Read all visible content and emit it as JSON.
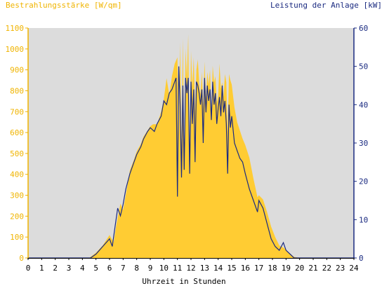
{
  "chart_data": {
    "type": "area",
    "left_axis_title": "Bestrahlungsstärke [W/qm]",
    "right_axis_title": "Leistung der Anlage [kW]",
    "xlabel": "Uhrzeit in Stunden",
    "x_ticks": [
      "0",
      "1",
      "2",
      "3",
      "4",
      "5",
      "6",
      "7",
      "8",
      "9",
      "10",
      "11",
      "12",
      "13",
      "14",
      "15",
      "16",
      "17",
      "18",
      "19",
      "20",
      "21",
      "22",
      "23",
      "24"
    ],
    "y_left_ticks": [
      "0",
      "100",
      "200",
      "300",
      "400",
      "500",
      "600",
      "700",
      "800",
      "900",
      "1000",
      "1100"
    ],
    "y_right_ticks": [
      "0",
      "10",
      "20",
      "30",
      "40",
      "50",
      "60"
    ],
    "x_range": [
      0,
      24
    ],
    "y_left_range": [
      0,
      1100
    ],
    "y_right_range": [
      0,
      60
    ],
    "grid": false,
    "colors": {
      "irradiance_fill": "#ffcc33",
      "power_line": "#1a2a80",
      "plot_bg": "#dcdcdc",
      "left_axis_text": "#f0b400",
      "right_axis_text": "#1a2a80",
      "bottom_text": "#000000"
    },
    "series": [
      {
        "axis": "left",
        "x": [
          0,
          4.5,
          5.0,
          5.5,
          6.0,
          6.3,
          6.5,
          6.8,
          7.0,
          7.3,
          7.5,
          7.8,
          8.0,
          8.3,
          8.5,
          8.8,
          9.0,
          9.2,
          9.5,
          9.8,
          10.0,
          10.2,
          10.4,
          10.6,
          10.8,
          11.0,
          11.1,
          11.2,
          11.3,
          11.4,
          11.5,
          11.6,
          11.7,
          11.8,
          11.9,
          12.0,
          12.1,
          12.2,
          12.3,
          12.4,
          12.5,
          12.6,
          12.7,
          12.8,
          12.9,
          13.0,
          13.1,
          13.2,
          13.3,
          13.4,
          13.5,
          13.6,
          13.7,
          13.8,
          13.9,
          14.0,
          14.1,
          14.2,
          14.3,
          14.4,
          14.5,
          14.6,
          14.7,
          14.8,
          14.9,
          15.0,
          15.2,
          15.4,
          15.6,
          15.8,
          16.0,
          16.3,
          16.6,
          16.9,
          17.0,
          17.3,
          17.6,
          17.9,
          18.2,
          18.5,
          18.8,
          19.0,
          19.3,
          19.6,
          20.0,
          20.3,
          24
        ],
        "values": [
          0,
          0,
          25,
          60,
          110,
          75,
          160,
          260,
          230,
          340,
          420,
          470,
          510,
          545,
          580,
          610,
          630,
          640,
          640,
          700,
          760,
          860,
          780,
          870,
          930,
          960,
          590,
          1030,
          540,
          1050,
          480,
          1000,
          860,
          1070,
          420,
          990,
          820,
          960,
          700,
          900,
          950,
          840,
          780,
          890,
          720,
          940,
          760,
          890,
          830,
          900,
          680,
          920,
          840,
          870,
          740,
          780,
          930,
          810,
          840,
          770,
          880,
          840,
          600,
          880,
          850,
          830,
          720,
          650,
          610,
          570,
          540,
          480,
          380,
          290,
          300,
          280,
          220,
          150,
          100,
          60,
          50,
          40,
          20,
          5,
          0,
          0,
          0
        ]
      },
      {
        "axis": "right",
        "x": [
          0,
          4.6,
          5.0,
          5.5,
          6.0,
          6.2,
          6.4,
          6.6,
          6.8,
          7.0,
          7.2,
          7.5,
          7.8,
          8.0,
          8.3,
          8.5,
          8.8,
          9.0,
          9.3,
          9.5,
          9.8,
          10.0,
          10.2,
          10.4,
          10.6,
          10.8,
          10.9,
          11.0,
          11.1,
          11.2,
          11.3,
          11.4,
          11.5,
          11.6,
          11.7,
          11.8,
          11.9,
          12.0,
          12.1,
          12.2,
          12.3,
          12.4,
          12.5,
          12.6,
          12.7,
          12.8,
          12.9,
          13.0,
          13.1,
          13.2,
          13.3,
          13.4,
          13.5,
          13.6,
          13.7,
          13.8,
          13.9,
          14.0,
          14.1,
          14.2,
          14.3,
          14.4,
          14.5,
          14.6,
          14.7,
          14.8,
          14.9,
          15.0,
          15.2,
          15.4,
          15.6,
          15.8,
          16.0,
          16.3,
          16.6,
          16.9,
          17.0,
          17.3,
          17.6,
          17.9,
          18.2,
          18.5,
          18.8,
          19.0,
          19.3,
          19.6,
          19.9,
          20.1,
          24
        ],
        "values": [
          0,
          0,
          1,
          3,
          5,
          3,
          8,
          13,
          11,
          14,
          18,
          22,
          25,
          27,
          29,
          31,
          33,
          34,
          33,
          35,
          37,
          41,
          40,
          43,
          44,
          46,
          47,
          16,
          50,
          40,
          21,
          45,
          23,
          47,
          43,
          47,
          22,
          46,
          35,
          44,
          25,
          46,
          45,
          43,
          40,
          44,
          30,
          47,
          38,
          45,
          41,
          44,
          36,
          46,
          40,
          43,
          35,
          39,
          42,
          37,
          45,
          38,
          41,
          35,
          22,
          40,
          34,
          37,
          30,
          28,
          26,
          25,
          22,
          18,
          15,
          12,
          15,
          13,
          9,
          5,
          3,
          2,
          4,
          2,
          1,
          0,
          0,
          0,
          0
        ]
      }
    ]
  }
}
